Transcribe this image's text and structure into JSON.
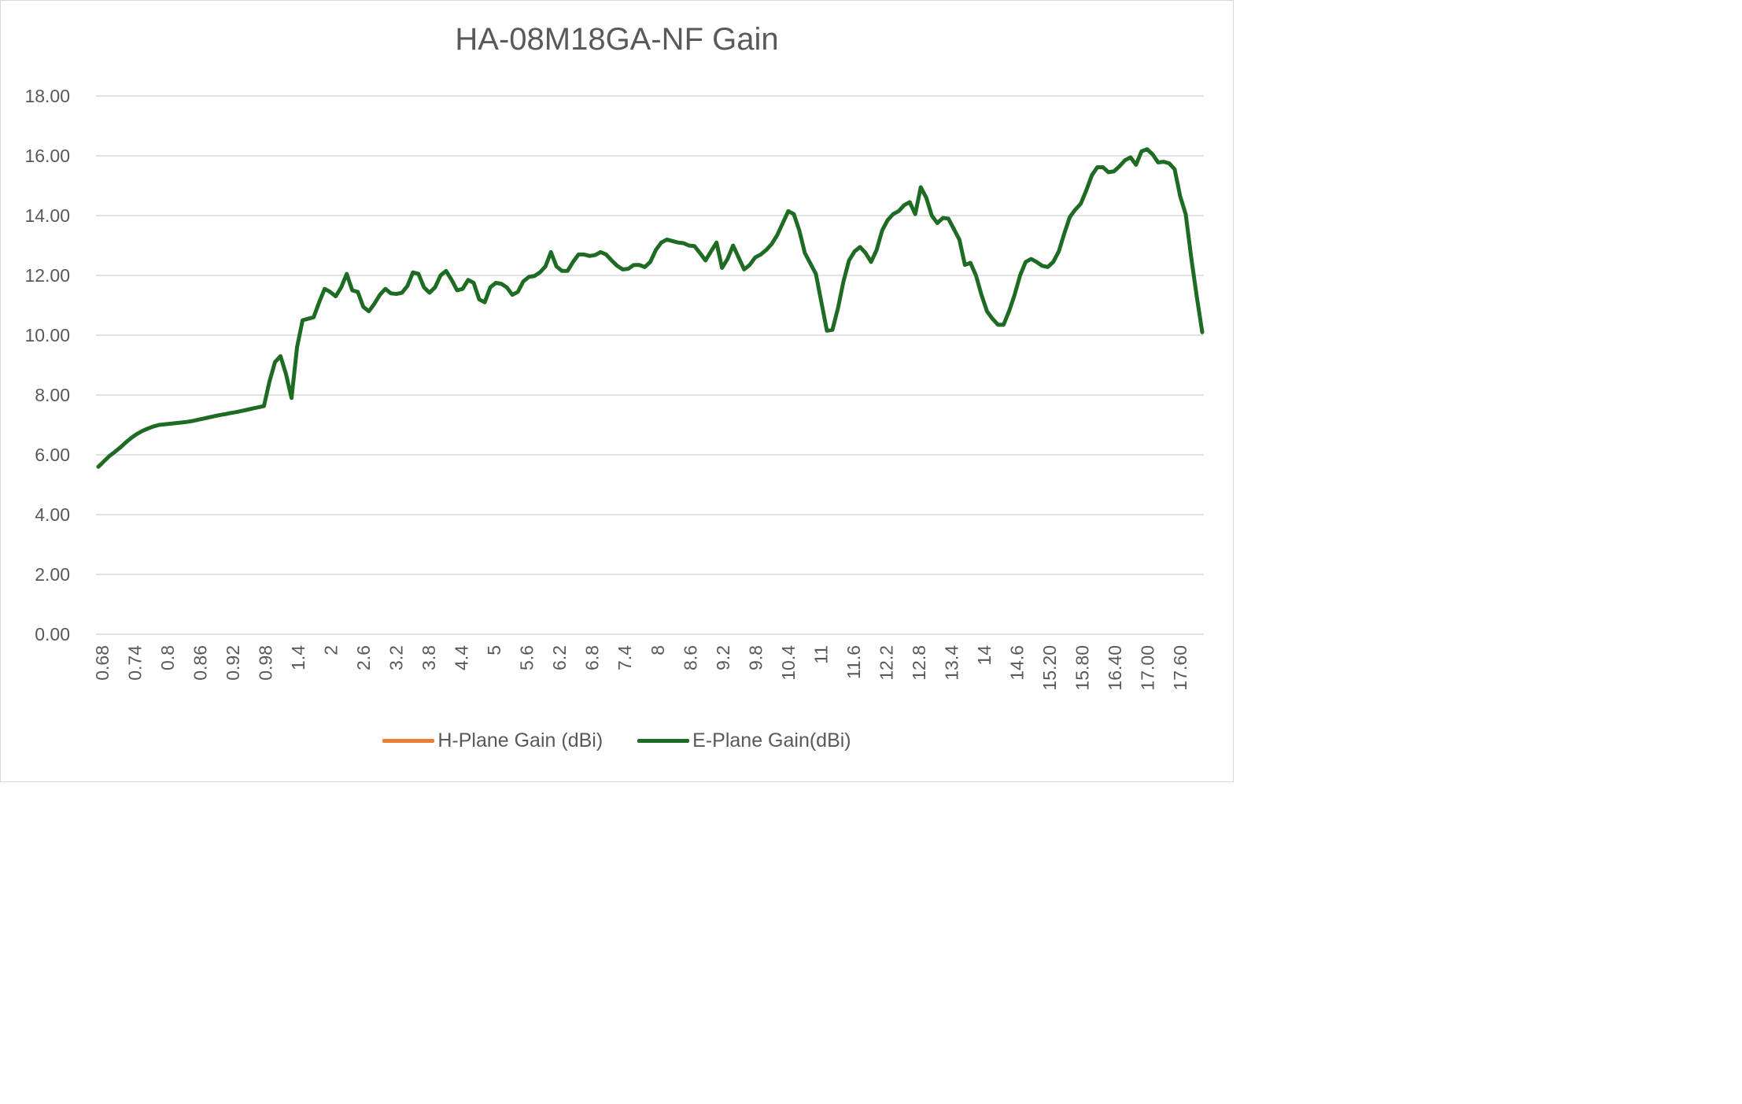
{
  "colors": {
    "h_plane": "#ed7d31",
    "e_plane": "#1e6b23",
    "grid": "#d9d9d9",
    "text": "#595959"
  },
  "chart_data": {
    "type": "line",
    "title": "HA-08M18GA-NF Gain",
    "xlabel": "",
    "ylabel": "",
    "ylim": [
      0,
      18
    ],
    "y_ticks": [
      "0.00",
      "2.00",
      "4.00",
      "6.00",
      "8.00",
      "10.00",
      "12.00",
      "14.00",
      "16.00",
      "18.00"
    ],
    "x_tick_labels": [
      "0.68",
      "0.74",
      "0.8",
      "0.86",
      "0.92",
      "0.98",
      "1.4",
      "2",
      "2.6",
      "3.2",
      "3.8",
      "4.4",
      "5",
      "5.6",
      "6.2",
      "6.8",
      "7.4",
      "8",
      "8.6",
      "9.2",
      "9.8",
      "10.4",
      "11",
      "11.6",
      "12.2",
      "12.8",
      "13.4",
      "14",
      "14.6",
      "15.20",
      "15.80",
      "16.40",
      "17.00",
      "17.60"
    ],
    "grid": true,
    "legend_position": "bottom",
    "series": [
      {
        "name": "H-Plane Gain (dBi)",
        "values": []
      },
      {
        "name": "E-Plane Gain(dBi)",
        "values": [
          5.6,
          5.78,
          5.96,
          6.1,
          6.25,
          6.42,
          6.57,
          6.7,
          6.8,
          6.88,
          6.95,
          7.0,
          7.02,
          7.04,
          7.06,
          7.08,
          7.1,
          7.13,
          7.17,
          7.21,
          7.25,
          7.29,
          7.33,
          7.36,
          7.4,
          7.43,
          7.47,
          7.51,
          7.55,
          7.59,
          7.63,
          8.45,
          9.1,
          9.3,
          8.7,
          7.9,
          9.6,
          10.5,
          10.55,
          10.6,
          11.1,
          11.55,
          11.45,
          11.3,
          11.6,
          12.05,
          11.5,
          11.45,
          10.95,
          10.8,
          11.05,
          11.35,
          11.55,
          11.4,
          11.38,
          11.42,
          11.65,
          12.1,
          12.05,
          11.6,
          11.42,
          11.6,
          12.0,
          12.15,
          11.85,
          11.5,
          11.55,
          11.85,
          11.75,
          11.2,
          11.1,
          11.6,
          11.75,
          11.72,
          11.6,
          11.35,
          11.45,
          11.8,
          11.95,
          11.98,
          12.1,
          12.3,
          12.78,
          12.3,
          12.15,
          12.15,
          12.45,
          12.7,
          12.7,
          12.65,
          12.68,
          12.78,
          12.7,
          12.5,
          12.32,
          12.2,
          12.22,
          12.35,
          12.35,
          12.28,
          12.45,
          12.85,
          13.1,
          13.2,
          13.15,
          13.1,
          13.08,
          13.0,
          12.98,
          12.75,
          12.5,
          12.8,
          13.1,
          12.25,
          12.55,
          13.0,
          12.6,
          12.2,
          12.35,
          12.6,
          12.7,
          12.85,
          13.05,
          13.35,
          13.75,
          14.15,
          14.05,
          13.5,
          12.75,
          12.4,
          12.05,
          11.1,
          10.15,
          10.18,
          10.9,
          11.8,
          12.5,
          12.8,
          12.95,
          12.75,
          12.45,
          12.85,
          13.5,
          13.85,
          14.05,
          14.15,
          14.35,
          14.45,
          14.05,
          14.95,
          14.6,
          14.0,
          13.75,
          13.92,
          13.9,
          13.55,
          13.2,
          12.35,
          12.42,
          12.0,
          11.35,
          10.8,
          10.55,
          10.35,
          10.35,
          10.8,
          11.35,
          12.0,
          12.45,
          12.55,
          12.45,
          12.32,
          12.28,
          12.45,
          12.8,
          13.4,
          13.95,
          14.2,
          14.4,
          14.85,
          15.35,
          15.62,
          15.62,
          15.45,
          15.48,
          15.65,
          15.85,
          15.95,
          15.7,
          16.15,
          16.22,
          16.05,
          15.78,
          15.8,
          15.75,
          15.55,
          14.65,
          14.05,
          12.6,
          11.3,
          10.1
        ]
      }
    ]
  }
}
